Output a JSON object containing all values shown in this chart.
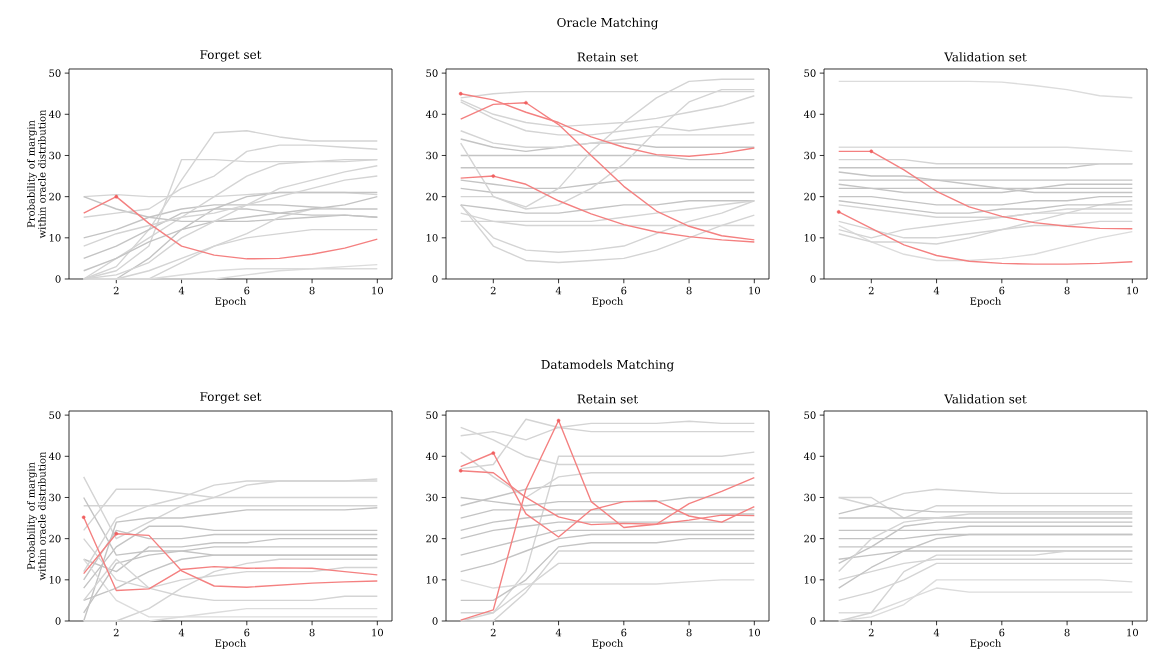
{
  "chart_data": [
    {
      "type": "line",
      "title": "Forget set",
      "xlabel": "Epoch",
      "ylabel": "Probability of margin within oracle distribution",
      "x": [
        1,
        2,
        3,
        4,
        5,
        6,
        7,
        8,
        9,
        10
      ],
      "xlim": [
        0.55,
        10.45
      ],
      "ylim": [
        0,
        51
      ],
      "xticks": [
        2,
        4,
        6,
        8,
        10
      ],
      "yticks": [
        0,
        10,
        20,
        30,
        40,
        50
      ],
      "series": [
        {
          "color": "#d4d4d4",
          "values": [
            0,
            3,
            12,
            24,
            35.5,
            36,
            34.5,
            33.5,
            33.5,
            33.5
          ]
        },
        {
          "color": "#d4d4d4",
          "values": [
            20,
            20.5,
            20,
            20,
            20,
            20.5,
            21,
            21,
            21,
            20.5
          ]
        },
        {
          "color": "#c4c4c4",
          "values": [
            0,
            0,
            5,
            12,
            17,
            20,
            21,
            21,
            21,
            21
          ]
        },
        {
          "color": "#c4c4c4",
          "values": [
            10,
            12,
            15,
            17,
            18,
            18,
            18,
            17.5,
            17,
            17
          ]
        },
        {
          "color": "#d4d4d4",
          "values": [
            0,
            0,
            2,
            5,
            8,
            10,
            11,
            12,
            12,
            12
          ]
        },
        {
          "color": "#d4d4d4",
          "values": [
            0,
            5,
            10,
            15,
            20,
            25,
            28,
            28.5,
            28.5,
            29
          ]
        },
        {
          "color": "#c4c4c4",
          "values": [
            5,
            8,
            12,
            16,
            17,
            17,
            16,
            15.5,
            15.5,
            15
          ]
        },
        {
          "color": "#dcdcdc",
          "values": [
            0,
            0,
            0,
            1,
            2,
            2.5,
            2.5,
            2.5,
            2.5,
            2.5
          ]
        },
        {
          "color": "#d4d4d4",
          "values": [
            0,
            2,
            8,
            29,
            29,
            28.5,
            28.5,
            28.5,
            29,
            29
          ]
        },
        {
          "color": "#c4c4c4",
          "values": [
            20,
            17,
            15,
            14,
            14,
            14,
            14.5,
            15,
            15.5,
            15
          ]
        },
        {
          "color": "#d4d4d4",
          "values": [
            0,
            0,
            0,
            4,
            8,
            11,
            15,
            17,
            17,
            17
          ]
        },
        {
          "color": "#d4d4d4",
          "values": [
            8,
            11,
            13,
            15,
            16,
            18,
            20,
            22,
            24,
            25
          ]
        },
        {
          "color": "#c4c4c4",
          "values": [
            2,
            5,
            9,
            12,
            14,
            15,
            16,
            17,
            18,
            20
          ]
        },
        {
          "color": "#dcdcdc",
          "values": [
            0,
            0,
            0,
            0,
            0,
            1,
            2,
            2.5,
            3,
            3.5
          ]
        },
        {
          "color": "#d4d4d4",
          "values": [
            15,
            16,
            17,
            22,
            25,
            31,
            32.5,
            32.5,
            32,
            31.5
          ]
        },
        {
          "color": "#d4d4d4",
          "values": [
            0,
            1,
            4,
            10,
            14,
            18,
            22,
            24,
            26,
            27.5
          ]
        },
        {
          "color": "#f48080",
          "values": [
            16,
            20,
            13.5,
            8,
            5.8,
            4.9,
            5,
            6,
            7.5,
            9.7
          ]
        },
        {
          "type": "scatter",
          "color": "#f06060",
          "x": [
            2
          ],
          "values": [
            20
          ]
        }
      ]
    },
    {
      "type": "line",
      "title": "Retain set",
      "xlabel": "Epoch",
      "annotations": [
        "Oracle Matching"
      ],
      "x": [
        1,
        2,
        3,
        4,
        5,
        6,
        7,
        8,
        9,
        10
      ],
      "xlim": [
        0.55,
        10.45
      ],
      "ylim": [
        0,
        51
      ],
      "xticks": [
        2,
        4,
        6,
        8,
        10
      ],
      "yticks": [
        0,
        10,
        20,
        30,
        40,
        50
      ],
      "series": [
        {
          "color": "#d4d4d4",
          "values": [
            43.5,
            40,
            38,
            37,
            37.5,
            38,
            39,
            40.5,
            42,
            44.5
          ]
        },
        {
          "color": "#d4d4d4",
          "values": [
            44,
            45,
            45.5,
            45.5,
            45.5,
            45.5,
            45.5,
            45.5,
            45.5,
            45.5
          ]
        },
        {
          "color": "#d4d4d4",
          "values": [
            18,
            8,
            4.5,
            4,
            4.5,
            5,
            7,
            10,
            13,
            15.5
          ]
        },
        {
          "color": "#d4d4d4",
          "values": [
            18,
            10,
            7,
            6.5,
            7,
            8,
            11,
            14,
            16,
            19
          ]
        },
        {
          "color": "#c4c4c4",
          "values": [
            34,
            32,
            31,
            32,
            33,
            33,
            32,
            32,
            32,
            32
          ]
        },
        {
          "color": "#c4c4c4",
          "values": [
            27,
            27,
            27,
            27,
            27,
            27,
            27,
            27,
            27,
            27
          ]
        },
        {
          "color": "#c4c4c4",
          "values": [
            24,
            23,
            22,
            22,
            23,
            24,
            24,
            24,
            24,
            24
          ]
        },
        {
          "color": "#c4c4c4",
          "values": [
            18,
            17,
            16,
            16,
            17,
            18,
            18,
            19,
            19,
            19
          ]
        },
        {
          "color": "#d4d4d4",
          "values": [
            14,
            14,
            13,
            13,
            13,
            13,
            13,
            13,
            13,
            13
          ]
        },
        {
          "color": "#d4d4d4",
          "values": [
            16,
            14,
            14,
            14,
            14,
            15,
            16,
            17,
            18,
            19
          ]
        },
        {
          "color": "#d4d4d4",
          "values": [
            36,
            33,
            32,
            32,
            33,
            34,
            35,
            35,
            35,
            35
          ]
        },
        {
          "color": "#c4c4c4",
          "values": [
            30,
            30,
            30,
            30,
            30,
            30,
            30,
            29,
            29,
            29
          ]
        },
        {
          "color": "#d4d4d4",
          "values": [
            20,
            20,
            17.5,
            22,
            31,
            38,
            44,
            48,
            48.5,
            48.5
          ]
        },
        {
          "color": "#d4d4d4",
          "values": [
            43,
            39,
            36,
            35,
            35,
            36,
            37,
            36,
            37,
            38
          ]
        },
        {
          "color": "#c4c4c4",
          "values": [
            22,
            21,
            21,
            21,
            21,
            21,
            21,
            21,
            21,
            21
          ]
        },
        {
          "color": "#d4d4d4",
          "values": [
            33,
            20,
            17,
            18,
            22,
            28,
            36,
            43,
            46,
            46
          ]
        },
        {
          "color": "#f48080",
          "values": [
            45,
            43.5,
            40.5,
            38,
            34.5,
            32,
            30.2,
            29.8,
            30.5,
            31.8
          ]
        },
        {
          "color": "#f48080",
          "values": [
            38.8,
            42.4,
            42.8,
            37.5,
            30,
            22.5,
            16.5,
            12.8,
            10.5,
            9.5
          ]
        },
        {
          "color": "#f48080",
          "values": [
            24.5,
            25,
            23,
            19,
            15.8,
            13.2,
            11.4,
            10.3,
            9.5,
            9
          ]
        },
        {
          "type": "scatter",
          "color": "#f06060",
          "x": [
            1,
            3,
            2
          ],
          "values": [
            45,
            42.8,
            25
          ]
        }
      ]
    },
    {
      "type": "line",
      "title": "Validation set",
      "xlabel": "Epoch",
      "x": [
        1,
        2,
        3,
        4,
        5,
        6,
        7,
        8,
        9,
        10
      ],
      "xlim": [
        0.55,
        10.45
      ],
      "ylim": [
        0,
        51
      ],
      "xticks": [
        2,
        4,
        6,
        8,
        10
      ],
      "yticks": [
        0,
        10,
        20,
        30,
        40,
        50
      ],
      "series": [
        {
          "color": "#dcdcdc",
          "values": [
            48,
            48,
            48,
            48,
            48,
            47.8,
            47,
            46,
            44.5,
            44
          ]
        },
        {
          "color": "#dcdcdc",
          "values": [
            32,
            32,
            32,
            32,
            32,
            32,
            32,
            32,
            31.5,
            31
          ]
        },
        {
          "color": "#dcdcdc",
          "values": [
            13,
            9,
            6,
            4.5,
            4.5,
            5,
            6,
            8,
            10,
            11.5
          ]
        },
        {
          "color": "#d4d4d4",
          "values": [
            11,
            9,
            9,
            8.5,
            10,
            12,
            14,
            16,
            18,
            19
          ]
        },
        {
          "color": "#d4d4d4",
          "values": [
            14,
            12,
            10,
            10,
            11,
            12,
            13,
            13,
            14,
            14
          ]
        },
        {
          "color": "#c4c4c4",
          "values": [
            24,
            24,
            24,
            24,
            24,
            24,
            24,
            24,
            24,
            24
          ]
        },
        {
          "color": "#c4c4c4",
          "values": [
            27,
            27,
            27,
            27,
            27,
            27,
            27,
            27,
            28,
            28
          ]
        },
        {
          "color": "#c4c4c4",
          "values": [
            22,
            22,
            22,
            22,
            22,
            22,
            22,
            22,
            22,
            22
          ]
        },
        {
          "color": "#c4c4c4",
          "values": [
            20,
            20,
            19,
            18,
            18,
            18,
            19,
            19,
            20,
            20
          ]
        },
        {
          "color": "#d4d4d4",
          "values": [
            18,
            17,
            16,
            15,
            15,
            15,
            16,
            16,
            16,
            16
          ]
        },
        {
          "color": "#c4c4c4",
          "values": [
            26,
            25,
            25,
            24,
            23,
            22,
            21,
            21,
            21,
            21
          ]
        },
        {
          "color": "#d4d4d4",
          "values": [
            29,
            29,
            29,
            28,
            28,
            28,
            28,
            28,
            28,
            28
          ]
        },
        {
          "color": "#d4d4d4",
          "values": [
            12,
            10,
            12,
            13,
            14,
            15,
            16,
            17,
            17,
            17
          ]
        },
        {
          "color": "#c4c4c4",
          "values": [
            23,
            22,
            21,
            21,
            21,
            21,
            22,
            23,
            23,
            23
          ]
        },
        {
          "color": "#c4c4c4",
          "values": [
            19,
            18,
            17,
            16,
            16,
            17,
            17,
            18,
            18,
            18
          ]
        },
        {
          "color": "#f48080",
          "values": [
            31,
            31,
            26.5,
            21.3,
            17.5,
            15.2,
            13.7,
            12.8,
            12.3,
            12.2
          ]
        },
        {
          "color": "#f48080",
          "values": [
            16.3,
            12.3,
            8.3,
            5.7,
            4.3,
            3.8,
            3.6,
            3.6,
            3.8,
            4.2
          ]
        },
        {
          "type": "scatter",
          "color": "#f06060",
          "x": [
            2,
            1
          ],
          "values": [
            31,
            16.3
          ]
        }
      ]
    },
    {
      "type": "line",
      "title": "Forget set",
      "xlabel": "Epoch",
      "ylabel": "Probability of margin within oracle distribution",
      "x": [
        1,
        2,
        3,
        4,
        5,
        6,
        7,
        8,
        9,
        10
      ],
      "xlim": [
        0.55,
        10.45
      ],
      "ylim": [
        0,
        51
      ],
      "xticks": [
        2,
        4,
        6,
        8,
        10
      ],
      "yticks": [
        0,
        10,
        20,
        30,
        40,
        50
      ],
      "series": [
        {
          "color": "#d4d4d4",
          "values": [
            35,
            20,
            24,
            28,
            30,
            33,
            34,
            34,
            34,
            34.5
          ]
        },
        {
          "color": "#d4d4d4",
          "values": [
            28,
            28,
            28,
            28,
            28,
            28,
            28,
            28,
            28,
            28
          ]
        },
        {
          "color": "#d4d4d4",
          "values": [
            22,
            32,
            32,
            31,
            30,
            30,
            30,
            30,
            30,
            30
          ]
        },
        {
          "color": "#c4c4c4",
          "values": [
            0,
            24,
            25,
            25,
            26,
            27,
            27,
            27,
            27,
            27.5
          ]
        },
        {
          "color": "#c4c4c4",
          "values": [
            10,
            22,
            20,
            20,
            21,
            21,
            21,
            21,
            21,
            21
          ]
        },
        {
          "color": "#c4c4c4",
          "values": [
            15,
            12,
            18,
            18,
            19,
            19,
            20,
            20,
            20,
            20
          ]
        },
        {
          "color": "#c4c4c4",
          "values": [
            5,
            8,
            12,
            15,
            16,
            16,
            16,
            16,
            16,
            16
          ]
        },
        {
          "color": "#d4d4d4",
          "values": [
            0,
            0,
            3,
            8,
            12,
            14,
            15,
            15,
            15,
            15
          ]
        },
        {
          "color": "#d4d4d4",
          "values": [
            20,
            10,
            8,
            6,
            5,
            5,
            5,
            5,
            6,
            6
          ]
        },
        {
          "color": "#dcdcdc",
          "values": [
            0,
            0,
            0,
            1,
            2,
            3,
            3,
            3,
            3,
            3
          ]
        },
        {
          "color": "#dcdcdc",
          "values": [
            15,
            5,
            1,
            1,
            1,
            1,
            1,
            1,
            1,
            1
          ]
        },
        {
          "color": "#c4c4c4",
          "values": [
            8,
            18,
            23,
            23,
            22,
            22,
            22,
            22,
            22,
            22
          ]
        },
        {
          "color": "#c4c4c4",
          "values": [
            2,
            14,
            16,
            17,
            18,
            18,
            18,
            18,
            18,
            18
          ]
        },
        {
          "color": "#c4c4c4",
          "values": [
            30,
            16,
            17,
            17,
            16,
            16,
            16,
            16,
            16,
            16
          ]
        },
        {
          "color": "#d4d4d4",
          "values": [
            12,
            25,
            28,
            30,
            33,
            34,
            34,
            34,
            34,
            34
          ]
        },
        {
          "color": "#d4d4d4",
          "values": [
            5,
            15,
            8,
            10,
            11,
            12,
            12,
            12,
            13,
            13
          ]
        },
        {
          "color": "#f48080",
          "values": [
            25.2,
            7.4,
            7.8,
            12.5,
            13.2,
            12.8,
            12.9,
            12.8,
            12,
            11.2
          ]
        },
        {
          "color": "#f48080",
          "values": [
            11.5,
            21.2,
            20.8,
            12.2,
            8.5,
            8.2,
            8.7,
            9.2,
            9.5,
            9.7
          ]
        },
        {
          "type": "scatter",
          "color": "#f06060",
          "x": [
            1,
            2
          ],
          "values": [
            25.2,
            21.2
          ]
        }
      ]
    },
    {
      "type": "line",
      "title": "Retain set",
      "xlabel": "Epoch",
      "annotations": [
        "Datamodels Matching"
      ],
      "x": [
        1,
        2,
        3,
        4,
        5,
        6,
        7,
        8,
        9,
        10
      ],
      "xlim": [
        0.55,
        10.45
      ],
      "ylim": [
        0,
        51
      ],
      "xticks": [
        2,
        4,
        6,
        8,
        10
      ],
      "yticks": [
        0,
        10,
        20,
        30,
        40,
        50
      ],
      "series": [
        {
          "color": "#d4d4d4",
          "values": [
            47,
            44,
            40,
            38,
            38,
            38,
            38,
            38,
            38,
            38
          ]
        },
        {
          "color": "#d4d4d4",
          "values": [
            45,
            46,
            44,
            47,
            48,
            48,
            48,
            48.5,
            48,
            48
          ]
        },
        {
          "color": "#d4d4d4",
          "values": [
            0,
            2,
            12,
            40,
            40,
            40,
            40,
            40,
            40,
            41
          ]
        },
        {
          "color": "#c4c4c4",
          "values": [
            28,
            30,
            32,
            33,
            33,
            33,
            33,
            33,
            33,
            33
          ]
        },
        {
          "color": "#c4c4c4",
          "values": [
            25,
            27,
            27,
            27,
            27,
            27,
            27,
            27,
            27,
            27
          ]
        },
        {
          "color": "#c4c4c4",
          "values": [
            20,
            22,
            23,
            24,
            24,
            24,
            24,
            24,
            24,
            24
          ]
        },
        {
          "color": "#c4c4c4",
          "values": [
            12,
            14,
            17,
            20,
            21,
            21,
            21,
            21,
            21,
            21
          ]
        },
        {
          "color": "#c4c4c4",
          "values": [
            5,
            5,
            10,
            18,
            19,
            19,
            19,
            20,
            20,
            20
          ]
        },
        {
          "color": "#d4d4d4",
          "values": [
            2,
            2,
            8,
            14,
            14,
            14,
            14,
            14,
            14,
            14
          ]
        },
        {
          "color": "#dcdcdc",
          "values": [
            10,
            8,
            9,
            9,
            9,
            9,
            9,
            9.5,
            10,
            10
          ]
        },
        {
          "color": "#c4c4c4",
          "values": [
            30,
            29,
            28,
            29,
            29,
            29,
            29,
            30,
            30,
            30
          ]
        },
        {
          "color": "#c4c4c4",
          "values": [
            16,
            18,
            20,
            22,
            22,
            22,
            22,
            22,
            22,
            22
          ]
        },
        {
          "color": "#d4d4d4",
          "values": [
            0,
            0,
            7,
            17,
            17,
            17,
            17,
            17,
            17,
            17
          ]
        },
        {
          "color": "#d4d4d4",
          "values": [
            37,
            38,
            49,
            47,
            46,
            46,
            46,
            46,
            46,
            46
          ]
        },
        {
          "color": "#c4c4c4",
          "values": [
            22,
            24,
            25,
            26,
            26,
            26,
            26,
            26,
            26,
            26
          ]
        },
        {
          "color": "#d4d4d4",
          "values": [
            41,
            35,
            30,
            35,
            36,
            36,
            36,
            36,
            36,
            36
          ]
        },
        {
          "color": "#f48080",
          "values": [
            37.5,
            40.8,
            26,
            20.4,
            27,
            29,
            29.2,
            25.5,
            24,
            27.8
          ]
        },
        {
          "color": "#f48080",
          "values": [
            36.5,
            36,
            30,
            25.3,
            23.4,
            23.7,
            23.5,
            24.5,
            25.7,
            25.6
          ]
        },
        {
          "color": "#f48080",
          "values": [
            0.2,
            2.7,
            32,
            48.7,
            29,
            22.7,
            23.5,
            28.5,
            31.5,
            34.8
          ]
        },
        {
          "type": "scatter",
          "color": "#f06060",
          "x": [
            2,
            1,
            4
          ],
          "values": [
            40.8,
            36.5,
            48.7
          ]
        }
      ]
    },
    {
      "type": "line",
      "title": "Validation set",
      "xlabel": "Epoch",
      "x": [
        1,
        2,
        3,
        4,
        5,
        6,
        7,
        8,
        9,
        10
      ],
      "xlim": [
        0.55,
        10.45
      ],
      "ylim": [
        0,
        51
      ],
      "xticks": [
        2,
        4,
        6,
        8,
        10
      ],
      "yticks": [
        0,
        10,
        20,
        30,
        40,
        50
      ],
      "series": [
        {
          "color": "#d4d4d4",
          "values": [
            30,
            30,
            25,
            28,
            28,
            28,
            28,
            28,
            28,
            28
          ]
        },
        {
          "color": "#d4d4d4",
          "values": [
            30,
            28,
            31,
            32,
            31.5,
            31,
            31,
            31,
            31,
            31
          ]
        },
        {
          "color": "#c4c4c4",
          "values": [
            25,
            25,
            25,
            25,
            25,
            25,
            25,
            25,
            25,
            25
          ]
        },
        {
          "color": "#c4c4c4",
          "values": [
            22,
            22,
            22,
            22,
            23,
            23,
            23,
            23,
            23,
            23
          ]
        },
        {
          "color": "#c4c4c4",
          "values": [
            20,
            20,
            20,
            21,
            21,
            21,
            21,
            21,
            21,
            21
          ]
        },
        {
          "color": "#c4c4c4",
          "values": [
            18,
            18,
            18,
            18,
            18,
            18,
            18,
            18,
            18,
            18
          ]
        },
        {
          "color": "#c4c4c4",
          "values": [
            15,
            16,
            17,
            17,
            17,
            17,
            17,
            17,
            17,
            17
          ]
        },
        {
          "color": "#d4d4d4",
          "values": [
            10,
            12,
            14,
            15,
            15,
            15,
            15,
            15,
            15,
            15
          ]
        },
        {
          "color": "#d4d4d4",
          "values": [
            5,
            7,
            10,
            14,
            14,
            14,
            14,
            14,
            14,
            14
          ]
        },
        {
          "color": "#dcdcdc",
          "values": [
            2,
            2,
            5,
            8,
            7,
            7,
            7,
            7,
            7,
            7
          ]
        },
        {
          "color": "#dcdcdc",
          "values": [
            0,
            1,
            4,
            10,
            10,
            10,
            10,
            10,
            10,
            9.5
          ]
        },
        {
          "color": "#d4d4d4",
          "values": [
            0,
            2,
            12,
            16,
            16,
            16,
            16,
            17,
            17,
            17
          ]
        },
        {
          "color": "#c4c4c4",
          "values": [
            8,
            13,
            17,
            20,
            21,
            21,
            21,
            21,
            21,
            21
          ]
        },
        {
          "color": "#c4c4c4",
          "values": [
            14,
            18,
            23,
            24,
            24,
            24,
            24,
            24,
            24,
            24
          ]
        },
        {
          "color": "#c4c4c4",
          "values": [
            26,
            28,
            27,
            26.5,
            26.5,
            26.5,
            26.5,
            26.5,
            26.5,
            26.5
          ]
        },
        {
          "color": "#d4d4d4",
          "values": [
            12,
            20,
            24,
            25,
            26,
            26,
            26,
            26,
            26,
            26
          ]
        }
      ]
    }
  ]
}
